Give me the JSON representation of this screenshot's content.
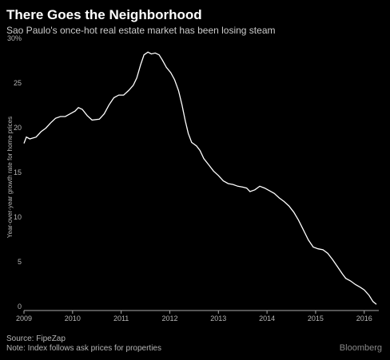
{
  "chart_data": {
    "type": "line",
    "title": "There Goes the Neighborhood",
    "subtitle": "Sao Paulo's once-hot real estate market has been losing steam",
    "y_label": "Year-over-year growth rate for home prices",
    "source": "Source: FipeZap",
    "note": "Note: Index follows ask prices for properties",
    "brand": "Bloomberg",
    "x": [
      2009.0,
      2009.05,
      2009.12,
      2009.25,
      2009.35,
      2009.45,
      2009.55,
      2009.65,
      2009.75,
      2009.85,
      2009.95,
      2010.05,
      2010.12,
      2010.2,
      2010.3,
      2010.4,
      2010.55,
      2010.65,
      2010.75,
      2010.85,
      2010.95,
      2011.05,
      2011.15,
      2011.25,
      2011.32,
      2011.4,
      2011.47,
      2011.55,
      2011.62,
      2011.7,
      2011.78,
      2011.85,
      2011.93,
      2012.02,
      2012.1,
      2012.18,
      2012.25,
      2012.32,
      2012.38,
      2012.45,
      2012.55,
      2012.62,
      2012.7,
      2012.8,
      2012.9,
      2013.0,
      2013.1,
      2013.2,
      2013.3,
      2013.4,
      2013.5,
      2013.58,
      2013.65,
      2013.75,
      2013.85,
      2013.95,
      2014.05,
      2014.15,
      2014.25,
      2014.35,
      2014.45,
      2014.55,
      2014.65,
      2014.75,
      2014.85,
      2014.95,
      2015.05,
      2015.15,
      2015.25,
      2015.35,
      2015.45,
      2015.55,
      2015.62,
      2015.72,
      2015.82,
      2015.92,
      2016.0,
      2016.1,
      2016.18,
      2016.25
    ],
    "series": [
      {
        "name": "Sao Paulo",
        "color": "#ffffff",
        "values": [
          18.7,
          19.4,
          19.2,
          19.4,
          20.0,
          20.4,
          21.0,
          21.5,
          21.7,
          21.7,
          22.0,
          22.3,
          22.7,
          22.5,
          21.8,
          21.3,
          21.4,
          22.0,
          23.0,
          23.8,
          24.1,
          24.1,
          24.6,
          25.2,
          26.0,
          27.5,
          28.6,
          28.9,
          28.7,
          28.8,
          28.6,
          28.0,
          27.2,
          26.6,
          25.8,
          24.6,
          23.0,
          21.2,
          19.8,
          18.8,
          18.4,
          17.9,
          17.0,
          16.3,
          15.6,
          15.1,
          14.5,
          14.2,
          14.1,
          13.9,
          13.8,
          13.7,
          13.3,
          13.5,
          13.9,
          13.7,
          13.4,
          13.1,
          12.6,
          12.2,
          11.7,
          11.0,
          10.1,
          9.0,
          7.9,
          7.1,
          6.9,
          6.8,
          6.4,
          5.7,
          4.9,
          4.1,
          3.6,
          3.3,
          2.9,
          2.6,
          2.3,
          1.7,
          1.0,
          0.7
        ]
      }
    ],
    "xlim": [
      2009,
      2016.3
    ],
    "xticks": [
      2009,
      2010,
      2011,
      2012,
      2013,
      2014,
      2015,
      2016
    ],
    "ylim": [
      0,
      30
    ],
    "yticks": [
      0,
      5,
      10,
      15,
      20,
      25,
      {
        "value": 30,
        "label": "30%"
      }
    ],
    "grid": false
  }
}
